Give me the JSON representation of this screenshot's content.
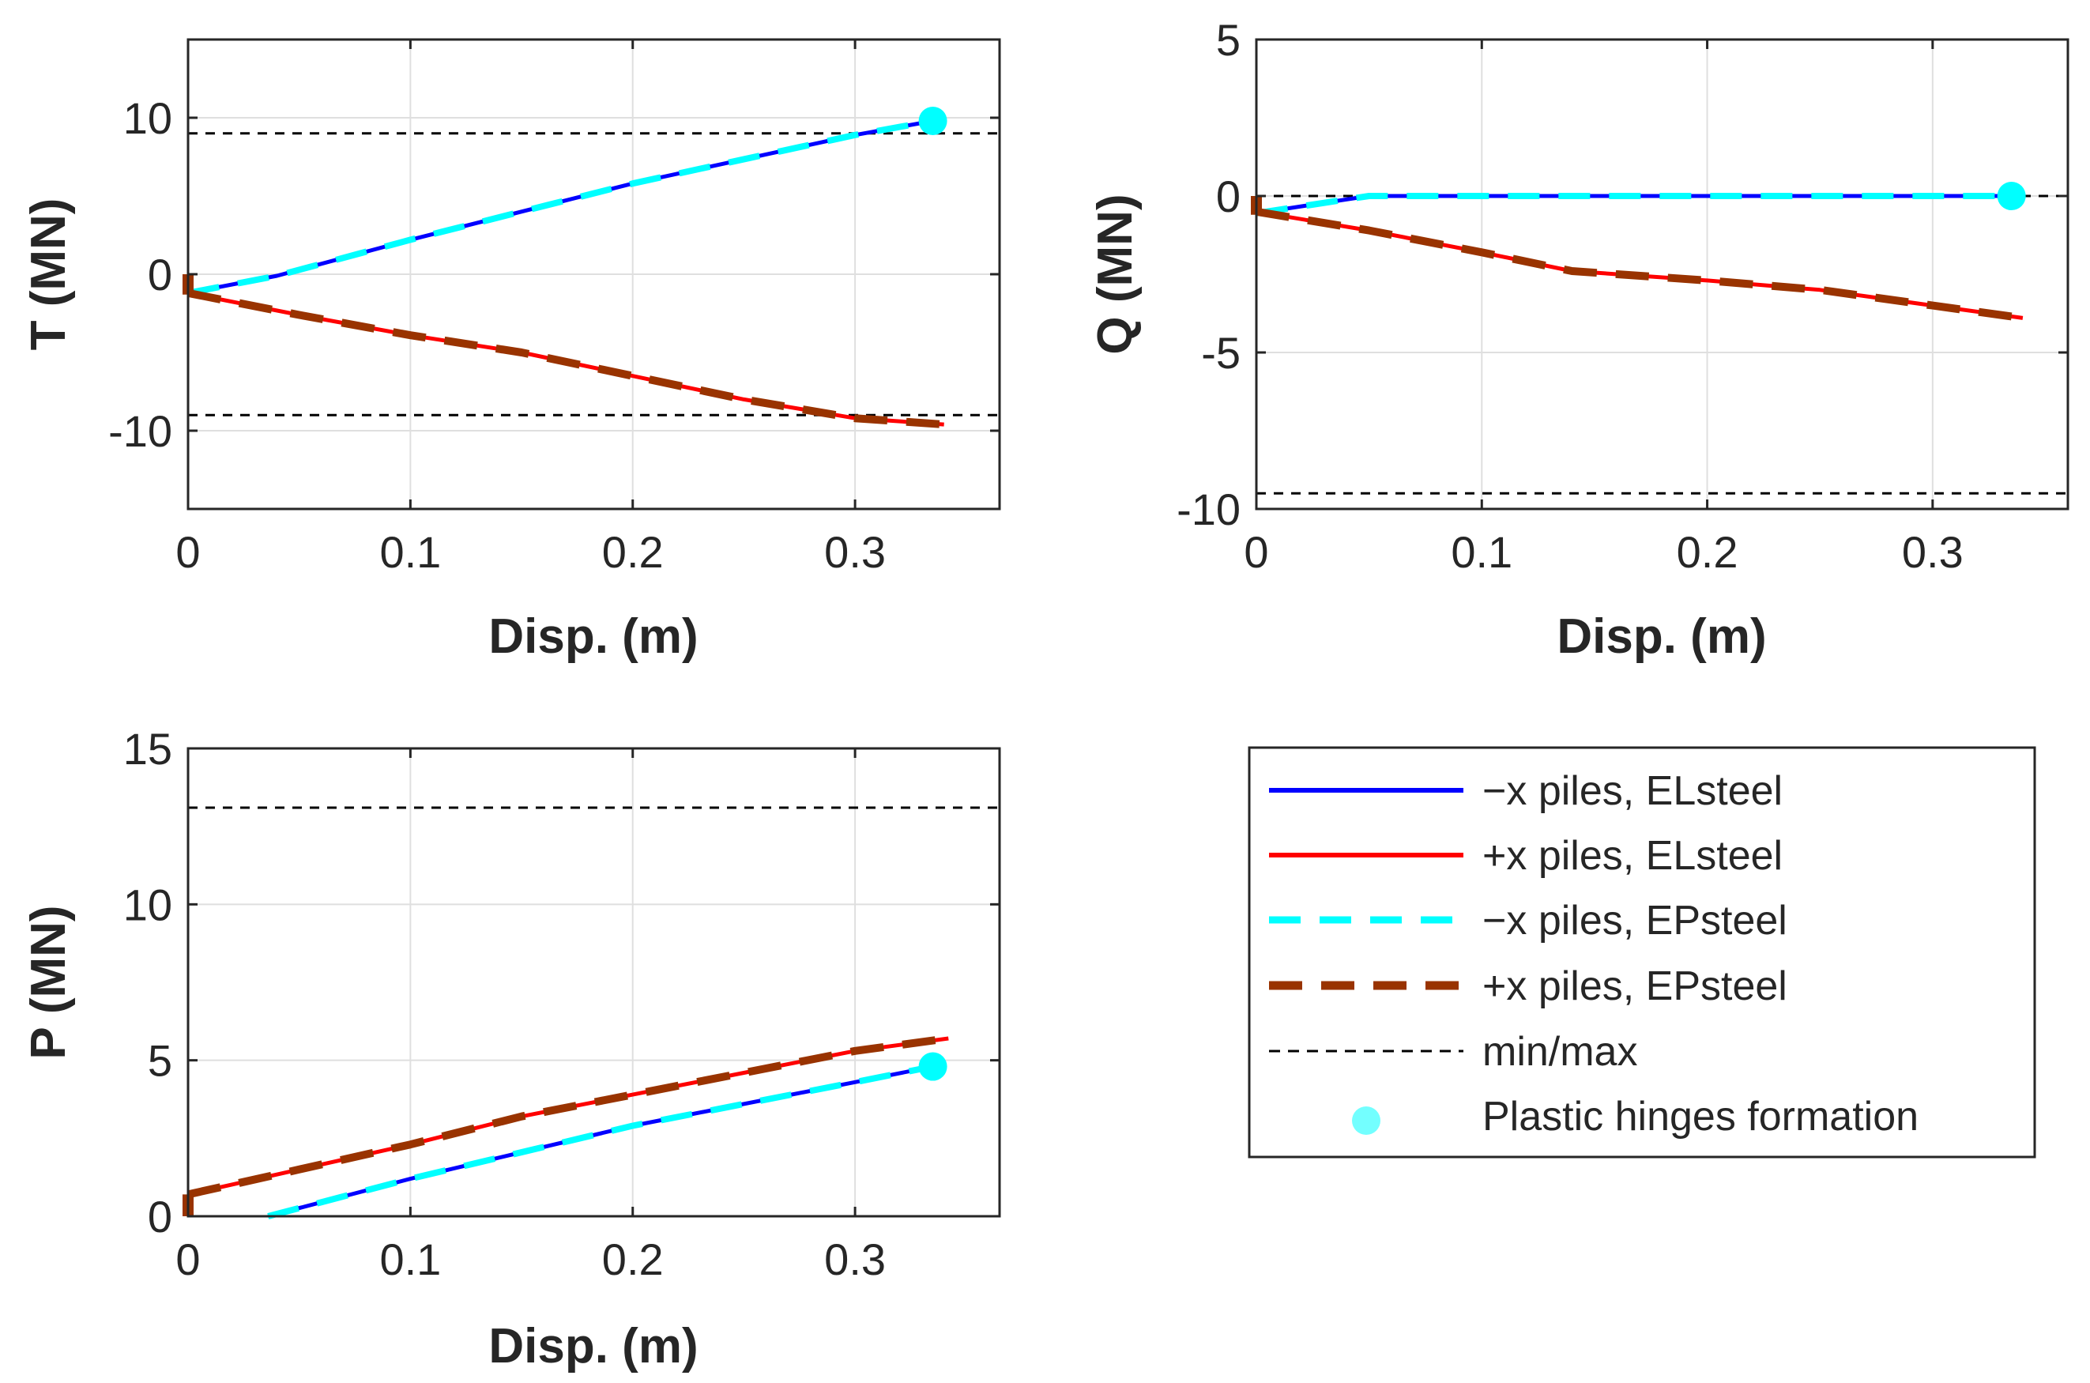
{
  "figure": {
    "legend": {
      "entries": [
        {
          "label": "−x piles, ELsteel",
          "color": "#0000ff",
          "style": "solid"
        },
        {
          "label": "+x piles, ELsteel",
          "color": "#ff0000",
          "style": "solid"
        },
        {
          "label": "−x piles, EPsteel",
          "color": "#00ffff",
          "style": "dashed"
        },
        {
          "label": "+x piles, EPsteel",
          "color": "#993300",
          "style": "dashed-thick"
        },
        {
          "label": "min/max",
          "color": "#000000",
          "style": "dotted"
        },
        {
          "label": "Plastic hinges formation",
          "color": "#00ffff",
          "style": "marker"
        }
      ]
    }
  },
  "chart_data": [
    {
      "id": "T",
      "type": "line",
      "xlabel": "Disp. (m)",
      "ylabel": "T (MN)",
      "xlim": [
        0,
        0.365
      ],
      "ylim": [
        -15,
        15
      ],
      "xticks": [
        0,
        0.1,
        0.2,
        0.3
      ],
      "xticklabels": [
        "0",
        "0.1",
        "0.2",
        "0.3"
      ],
      "yticks": [
        -10,
        0,
        10
      ],
      "yticklabels": [
        "-10",
        "0",
        "10"
      ],
      "grid": true,
      "series": [
        {
          "name": "−x piles, ELsteel",
          "color": "#0000ff",
          "dash": "solid",
          "x": [
            0,
            0.04,
            0.1,
            0.2,
            0.3,
            0.335
          ],
          "y": [
            -1.2,
            -0.1,
            2.2,
            5.8,
            8.9,
            9.8
          ]
        },
        {
          "name": "−x piles, EPsteel",
          "color": "#00ffff",
          "dash": "dashed",
          "x": [
            0,
            0.04,
            0.1,
            0.2,
            0.3,
            0.335
          ],
          "y": [
            -1.2,
            -0.1,
            2.2,
            5.8,
            8.9,
            9.8
          ]
        },
        {
          "name": "+x piles, ELsteel",
          "color": "#ff0000",
          "dash": "solid",
          "x": [
            0,
            0.05,
            0.1,
            0.15,
            0.2,
            0.25,
            0.3,
            0.34
          ],
          "y": [
            -1.2,
            -2.6,
            -3.9,
            -5.0,
            -6.5,
            -8.0,
            -9.2,
            -9.6
          ]
        },
        {
          "name": "+x piles, EPsteel",
          "color": "#993300",
          "dash": "dashed-thick",
          "x": [
            0,
            0.05,
            0.1,
            0.15,
            0.2,
            0.25,
            0.3,
            0.34
          ],
          "y": [
            -1.2,
            -2.6,
            -3.9,
            -5.0,
            -6.5,
            -8.0,
            -9.2,
            -9.6
          ]
        }
      ],
      "minmax": [
        9.0,
        -9.0
      ],
      "hinges": [
        {
          "x": 0.335,
          "y": 9.8
        }
      ],
      "start_marker": {
        "x": 0,
        "y": [
          -1.3,
          0
        ]
      }
    },
    {
      "id": "Q",
      "type": "line",
      "xlabel": "Disp. (m)",
      "ylabel": "Q (MN)",
      "xlim": [
        0,
        0.36
      ],
      "ylim": [
        -10,
        5
      ],
      "xticks": [
        0,
        0.1,
        0.2,
        0.3
      ],
      "xticklabels": [
        "0",
        "0.1",
        "0.2",
        "0.3"
      ],
      "yticks": [
        -10,
        -5,
        0,
        5
      ],
      "yticklabels": [
        "-10",
        "-5",
        "0",
        "5"
      ],
      "grid": true,
      "series": [
        {
          "name": "−x piles, ELsteel",
          "color": "#0000ff",
          "dash": "solid",
          "x": [
            0,
            0.05,
            0.1,
            0.2,
            0.3,
            0.335
          ],
          "y": [
            -0.55,
            0,
            0,
            0,
            0,
            0
          ]
        },
        {
          "name": "−x piles, EPsteel",
          "color": "#00ffff",
          "dash": "dashed",
          "x": [
            0,
            0.05,
            0.1,
            0.2,
            0.3,
            0.335
          ],
          "y": [
            -0.55,
            0,
            0,
            0,
            0,
            0
          ]
        },
        {
          "name": "+x piles, ELsteel",
          "color": "#ff0000",
          "dash": "solid",
          "x": [
            0,
            0.05,
            0.1,
            0.14,
            0.2,
            0.25,
            0.3,
            0.34
          ],
          "y": [
            -0.5,
            -1.1,
            -1.8,
            -2.4,
            -2.7,
            -3.0,
            -3.5,
            -3.9
          ]
        },
        {
          "name": "+x piles, EPsteel",
          "color": "#993300",
          "dash": "dashed-thick",
          "x": [
            0,
            0.05,
            0.1,
            0.14,
            0.2,
            0.25,
            0.3,
            0.34
          ],
          "y": [
            -0.5,
            -1.1,
            -1.8,
            -2.4,
            -2.7,
            -3.0,
            -3.5,
            -3.9
          ]
        }
      ],
      "minmax": [
        0,
        -9.5
      ],
      "hinges": [
        {
          "x": 0.335,
          "y": 0
        }
      ],
      "start_marker": {
        "x": 0,
        "y": [
          -0.6,
          0
        ]
      }
    },
    {
      "id": "P",
      "type": "line",
      "xlabel": "Disp. (m)",
      "ylabel": "P (MN)",
      "xlim": [
        0,
        0.365
      ],
      "ylim": [
        0,
        15
      ],
      "xticks": [
        0,
        0.1,
        0.2,
        0.3
      ],
      "xticklabels": [
        "0",
        "0.1",
        "0.2",
        "0.3"
      ],
      "yticks": [
        0,
        5,
        10,
        15
      ],
      "yticklabels": [
        "0",
        "5",
        "10",
        "15"
      ],
      "grid": true,
      "series": [
        {
          "name": "−x piles, ELsteel",
          "color": "#0000ff",
          "dash": "solid",
          "x": [
            0.036,
            0.1,
            0.2,
            0.3,
            0.335
          ],
          "y": [
            0,
            1.2,
            2.9,
            4.3,
            4.8
          ]
        },
        {
          "name": "−x piles, EPsteel",
          "color": "#00ffff",
          "dash": "dashed",
          "x": [
            0.036,
            0.1,
            0.2,
            0.3,
            0.335
          ],
          "y": [
            0,
            1.2,
            2.9,
            4.3,
            4.8
          ]
        },
        {
          "name": "+x piles, ELsteel",
          "color": "#ff0000",
          "dash": "solid",
          "x": [
            0,
            0.05,
            0.1,
            0.15,
            0.2,
            0.25,
            0.3,
            0.342
          ],
          "y": [
            0.7,
            1.5,
            2.3,
            3.2,
            3.9,
            4.6,
            5.3,
            5.7
          ]
        },
        {
          "name": "+x piles, EPsteel",
          "color": "#993300",
          "dash": "dashed-thick",
          "x": [
            0,
            0.05,
            0.1,
            0.15,
            0.2,
            0.25,
            0.3,
            0.342
          ],
          "y": [
            0.7,
            1.5,
            2.3,
            3.2,
            3.9,
            4.6,
            5.3,
            5.7
          ]
        }
      ],
      "minmax": [
        13.1
      ],
      "hinges": [
        {
          "x": 0.335,
          "y": 4.8
        }
      ],
      "start_marker": {
        "x": 0,
        "y": [
          0,
          0.7
        ]
      }
    }
  ]
}
